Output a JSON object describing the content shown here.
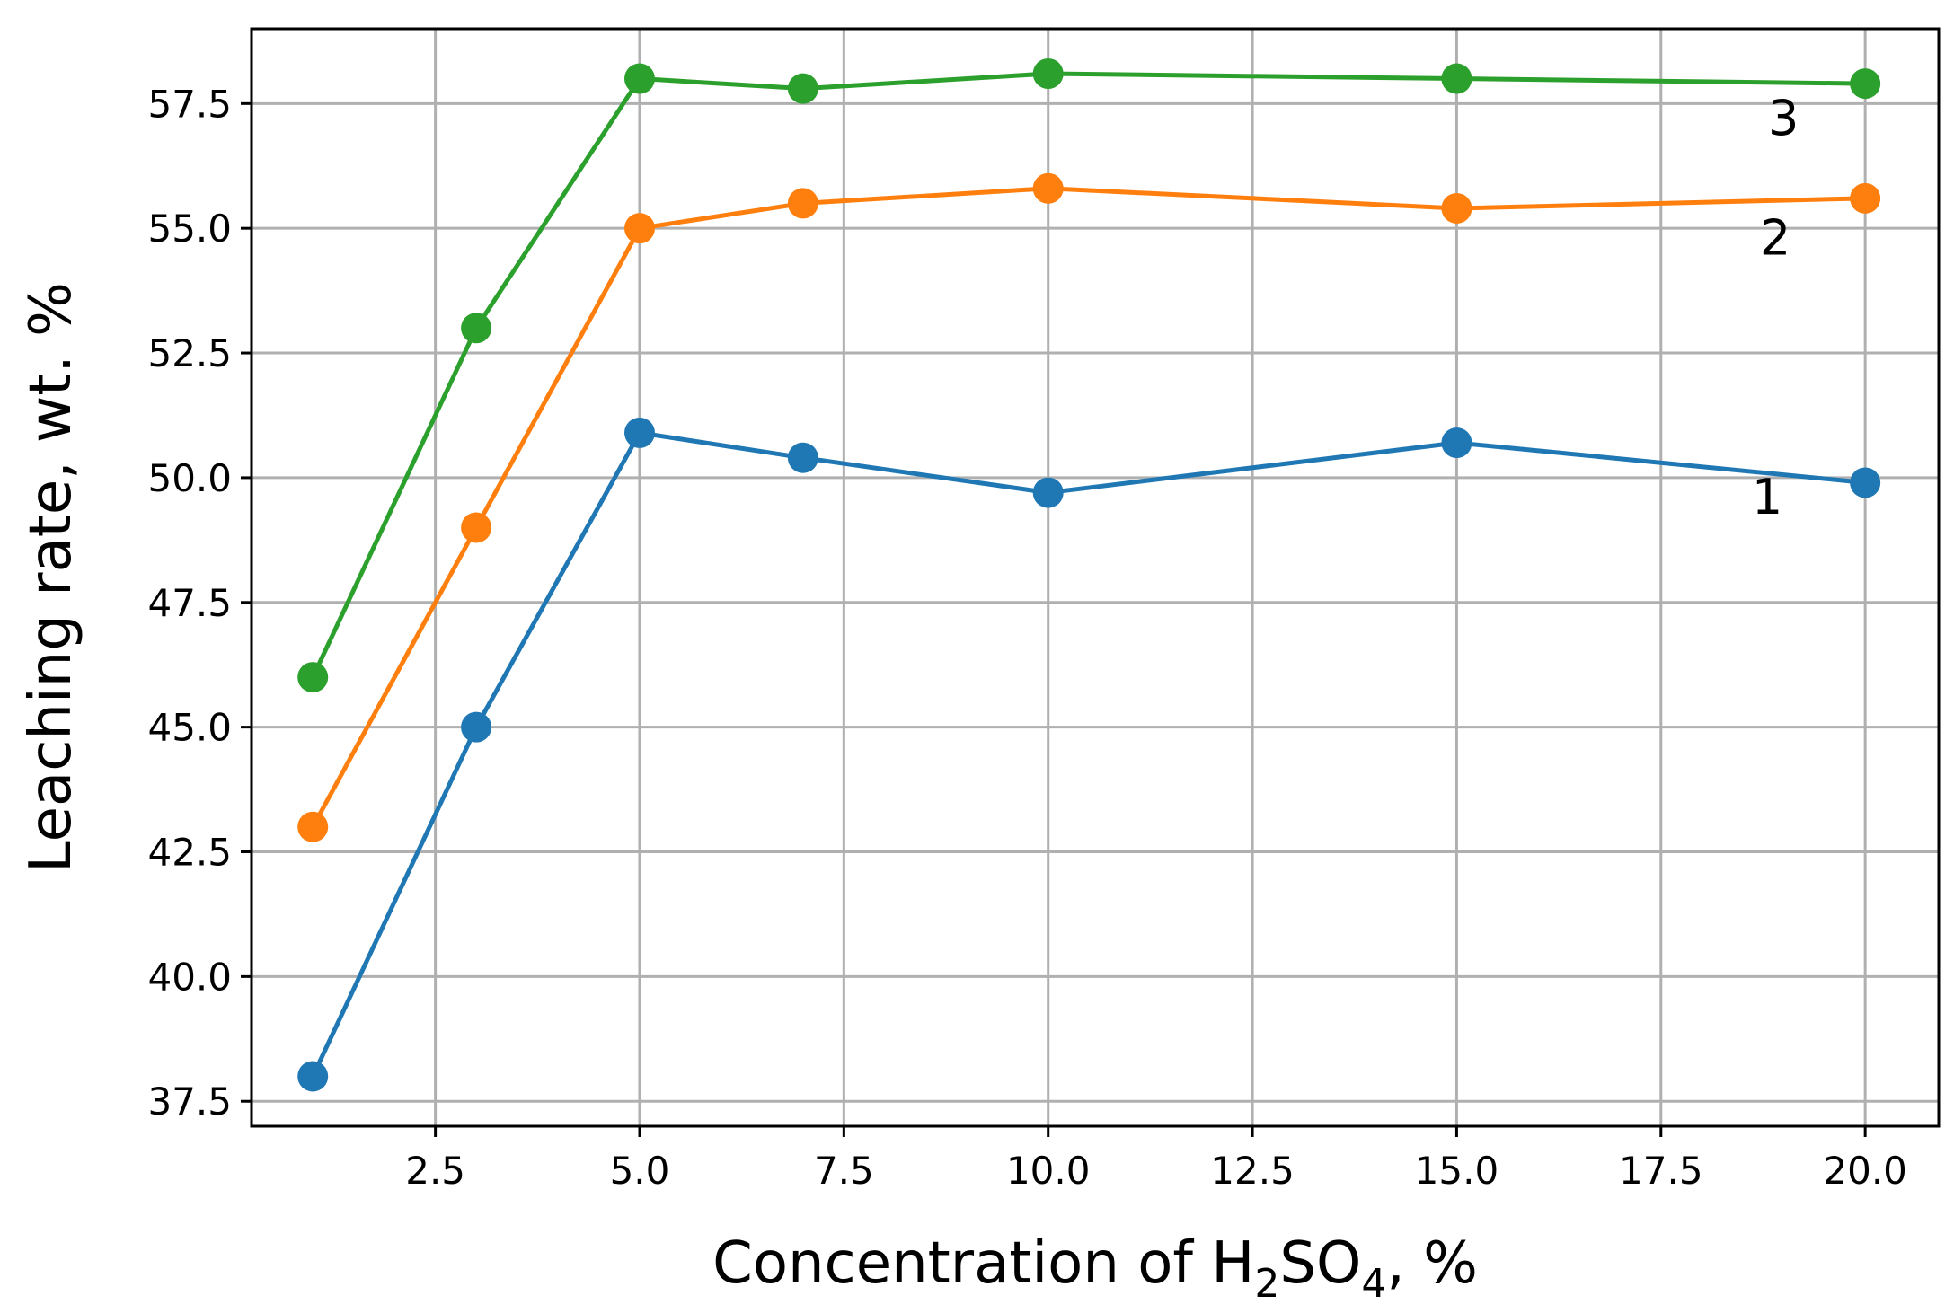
{
  "chart_data": {
    "type": "line",
    "title": "",
    "xlabel": {
      "prefix": "Concentration of H",
      "sub1": "2",
      "mid": "SO",
      "sub2": "4",
      "suffix": ", %"
    },
    "ylabel": "Leaching rate,  wt. %",
    "xlim": [
      0.25,
      20.9
    ],
    "ylim": [
      37.0,
      59.0
    ],
    "x_ticks": [
      2.5,
      5.0,
      7.5,
      10.0,
      12.5,
      15.0,
      17.5,
      20.0
    ],
    "x_tick_labels": [
      "2.5",
      "5.0",
      "7.5",
      "10.0",
      "12.5",
      "15.0",
      "17.5",
      "20.0"
    ],
    "y_ticks": [
      37.5,
      40.0,
      42.5,
      45.0,
      47.5,
      50.0,
      52.5,
      55.0,
      57.5
    ],
    "y_tick_labels": [
      "37.5",
      "40.0",
      "42.5",
      "45.0",
      "47.5",
      "50.0",
      "52.5",
      "55.0",
      "57.5"
    ],
    "grid": true,
    "x": [
      1,
      3,
      5,
      7,
      10,
      15,
      20
    ],
    "series": [
      {
        "name": "1",
        "color": "#1f77b4",
        "values": [
          38.0,
          45.0,
          50.9,
          50.4,
          49.7,
          50.7,
          49.9
        ],
        "label_at": [
          18.8,
          49.6
        ]
      },
      {
        "name": "2",
        "color": "#ff7f0e",
        "values": [
          43.0,
          49.0,
          55.0,
          55.5,
          55.8,
          55.4,
          55.6
        ],
        "label_at": [
          18.9,
          54.8
        ]
      },
      {
        "name": "3",
        "color": "#2ca02c",
        "values": [
          46.0,
          53.0,
          58.0,
          57.8,
          58.1,
          58.0,
          57.9
        ],
        "label_at": [
          19.0,
          57.2
        ]
      }
    ]
  }
}
